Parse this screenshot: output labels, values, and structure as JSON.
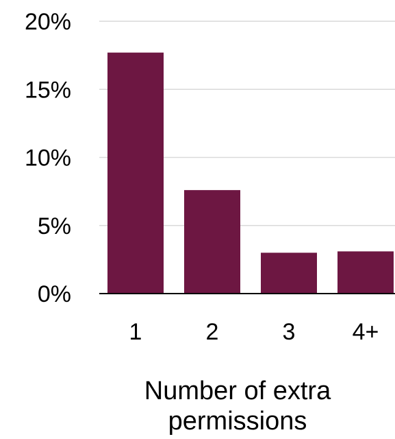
{
  "chart_data": {
    "type": "bar",
    "categories": [
      "1",
      "2",
      "3",
      "4+"
    ],
    "values": [
      17.7,
      7.6,
      3.0,
      3.1
    ],
    "ylim": [
      0,
      20
    ],
    "yticks": [
      "0%",
      "5%",
      "10%",
      "15%",
      "20%"
    ],
    "ytick_values": [
      0,
      5,
      10,
      15,
      20
    ],
    "xlabel_lines": [
      "Number of extra",
      "permissions"
    ],
    "grid": true,
    "bar_color": "#6d1742"
  }
}
